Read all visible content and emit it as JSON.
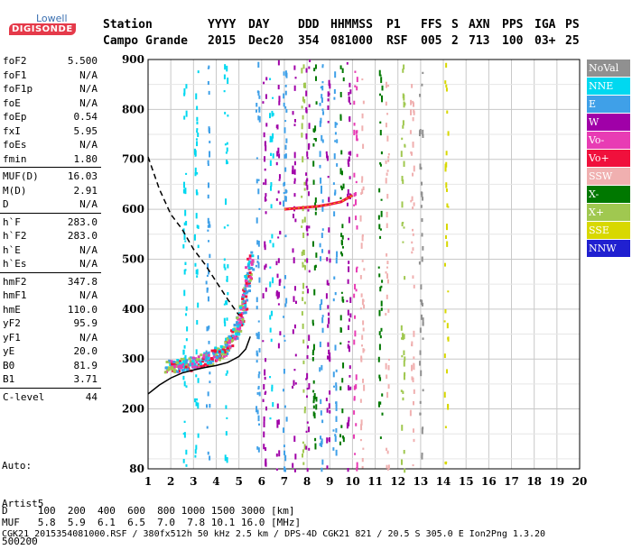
{
  "logo": {
    "line1": "Lowell",
    "line2": "DIGISONDE"
  },
  "header": {
    "labels": [
      "Station",
      "YYYY",
      "DAY",
      "DDD",
      "HHMMSS",
      "P1",
      "FFS",
      "S",
      "AXN",
      "PPS",
      "IGA",
      "PS"
    ],
    "values": [
      "Campo Grande",
      "2015",
      "Dec20",
      "354",
      "081000",
      "RSF",
      "005",
      "2",
      "713",
      "100",
      "03+",
      "25"
    ]
  },
  "params": [
    {
      "group": [
        [
          "foF2",
          "5.500"
        ],
        [
          "foF1",
          "N/A"
        ],
        [
          "foF1p",
          "N/A"
        ],
        [
          "foE",
          "N/A"
        ],
        [
          "foEp",
          "0.54"
        ],
        [
          "fxI",
          "5.95"
        ],
        [
          "foEs",
          "N/A"
        ],
        [
          "fmin",
          "1.80"
        ]
      ]
    },
    {
      "group": [
        [
          "MUF(D)",
          "16.03"
        ],
        [
          "M(D)",
          "2.91"
        ],
        [
          "D",
          "N/A"
        ]
      ]
    },
    {
      "group": [
        [
          "h`F",
          "283.0"
        ],
        [
          "h`F2",
          "283.0"
        ],
        [
          "h`E",
          "N/A"
        ],
        [
          "h`Es",
          "N/A"
        ]
      ]
    },
    {
      "group": [
        [
          "hmF2",
          "347.8"
        ],
        [
          "hmF1",
          "N/A"
        ],
        [
          "hmE",
          "110.0"
        ],
        [
          "yF2",
          "95.9"
        ],
        [
          "yF1",
          "N/A"
        ],
        [
          "yE",
          "20.0"
        ],
        [
          "B0",
          "81.9"
        ],
        [
          "B1",
          "3.71"
        ]
      ]
    },
    {
      "group": [
        [
          "C-level",
          "44"
        ]
      ]
    }
  ],
  "auto": {
    "line1": "Auto:",
    "line2": "Artist5",
    "line3": "500200"
  },
  "legend": [
    {
      "label": "NoVal",
      "color": "#909090"
    },
    {
      "label": "NNE",
      "color": "#00d8f0"
    },
    {
      "label": "E",
      "color": "#3fa0e8"
    },
    {
      "label": "W",
      "color": "#a000a8"
    },
    {
      "label": "Vo-",
      "color": "#e83cb4"
    },
    {
      "label": "Vo+",
      "color": "#f0103c"
    },
    {
      "label": "SSW",
      "color": "#f0b0b0"
    },
    {
      "label": "X-",
      "color": "#007800"
    },
    {
      "label": "X+",
      "color": "#a0c850"
    },
    {
      "label": "SSE",
      "color": "#d8d800"
    },
    {
      "label": "NNW",
      "color": "#2020d0"
    }
  ],
  "footer": {
    "d_row": "D     100  200  400  600  800 1000 1500 3000 [km]",
    "muf_row": "MUF   5.8  5.9  6.1  6.5  7.0  7.8 10.1 16.0 [MHz]",
    "file_row": "CGK21_2015354081000.RSF / 380fx512h 50 kHz 2.5 km / DPS-4D CGK21 821 / 20.5 S 305.0 E Ion2Png 1.3.20"
  },
  "chart_data": {
    "type": "scatter",
    "xlim": [
      1,
      20
    ],
    "ylim": [
      80,
      900
    ],
    "x_ticks": [
      1,
      2,
      3,
      4,
      5,
      6,
      7,
      8,
      9,
      10,
      11,
      12,
      13,
      14,
      15,
      16,
      17,
      18,
      19,
      20
    ],
    "y_ticks": [
      80,
      200,
      300,
      400,
      500,
      600,
      700,
      800,
      900
    ],
    "grid": true,
    "legend_placement": "right",
    "profile_line": {
      "x": [
        1.0,
        1.5,
        2.0,
        2.5,
        3.0,
        3.5,
        4.0,
        4.5,
        5.0,
        5.3,
        5.5
      ],
      "y": [
        230,
        248,
        262,
        272,
        278,
        283,
        287,
        293,
        305,
        320,
        345
      ]
    },
    "muf_dashed": {
      "x": [
        1.0,
        1.5,
        2.0,
        2.5,
        3.0,
        3.5,
        4.0,
        4.5,
        5.0
      ],
      "y": [
        705,
        640,
        590,
        560,
        520,
        490,
        455,
        420,
        388
      ]
    },
    "trace_o": {
      "x": [
        1.8,
        2.3,
        2.8,
        3.3,
        3.8,
        4.2,
        4.6,
        4.9,
        5.1,
        5.3,
        5.5
      ],
      "y": [
        287,
        289,
        292,
        298,
        305,
        318,
        338,
        365,
        400,
        450,
        510
      ]
    },
    "trace_high": {
      "x": [
        7.0,
        7.5,
        8.0,
        8.5,
        9.0,
        9.5,
        10.0
      ],
      "y": [
        600,
        602,
        604,
        606,
        610,
        615,
        628
      ]
    }
  }
}
